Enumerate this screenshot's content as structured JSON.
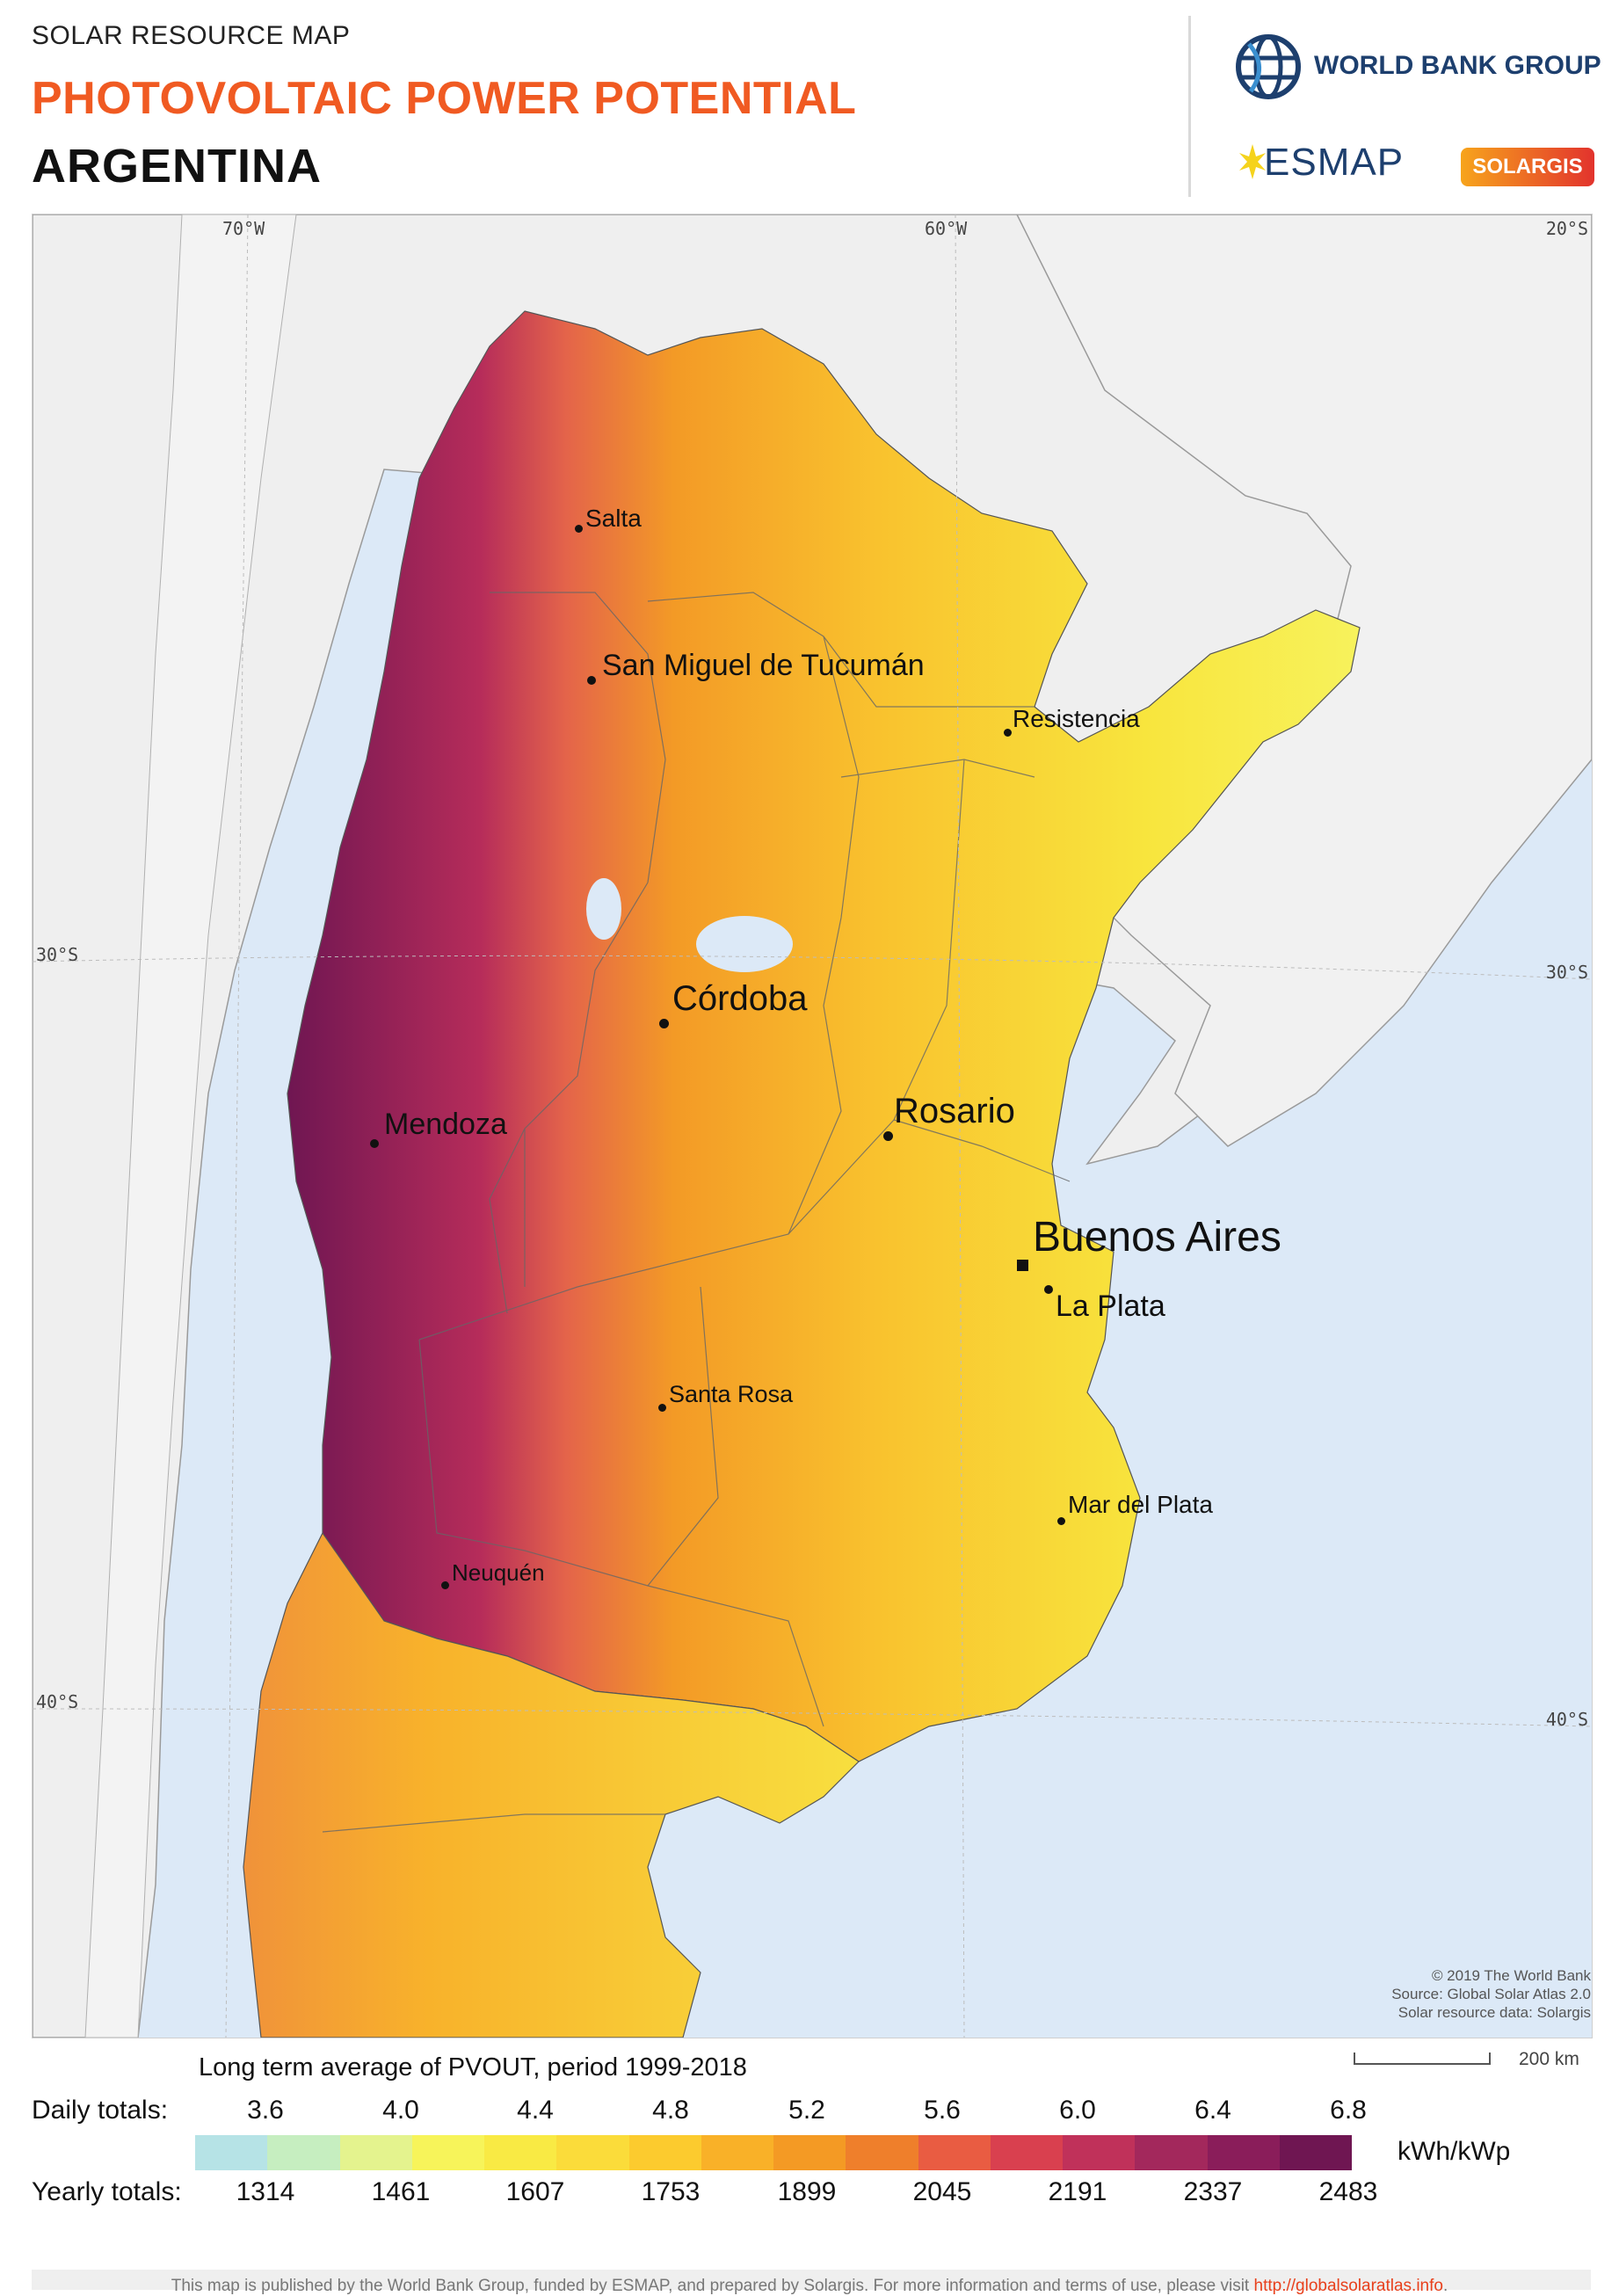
{
  "header": {
    "kicker": "SOLAR RESOURCE MAP",
    "title": "PHOTOVOLTAIC POWER POTENTIAL",
    "country": "ARGENTINA",
    "logos": {
      "world_bank": "WORLD BANK GROUP",
      "esmap": "ESMAP",
      "solargis": "SOLARGIS"
    }
  },
  "map": {
    "graticule": {
      "longitudes": [
        "70°W",
        "60°W"
      ],
      "latitudes_left": [
        "30°S",
        "40°S"
      ],
      "latitudes_right": [
        "20°S",
        "30°S",
        "40°S"
      ]
    },
    "cities": [
      {
        "name": "Salta",
        "size": "small"
      },
      {
        "name": "San Miguel de Tucumán",
        "size": "medium"
      },
      {
        "name": "Resistencia",
        "size": "small"
      },
      {
        "name": "Córdoba",
        "size": "large"
      },
      {
        "name": "Mendoza",
        "size": "medium"
      },
      {
        "name": "Rosario",
        "size": "large"
      },
      {
        "name": "Buenos Aires",
        "size": "capital"
      },
      {
        "name": "La Plata",
        "size": "medium"
      },
      {
        "name": "Santa Rosa",
        "size": "small"
      },
      {
        "name": "Mar del Plata",
        "size": "small"
      },
      {
        "name": "Neuquén",
        "size": "small"
      }
    ],
    "credits": [
      "© 2019 The World Bank",
      "Source: Global Solar Atlas 2.0",
      "Solar resource data: Solargis"
    ],
    "scale_label": "200 km"
  },
  "legend": {
    "title": "Long term average of PVOUT, period 1999-2018",
    "daily_label": "Daily totals:",
    "yearly_label": "Yearly totals:",
    "daily_values": [
      "3.6",
      "4.0",
      "4.4",
      "4.8",
      "5.2",
      "5.6",
      "6.0",
      "6.4",
      "6.8"
    ],
    "yearly_values": [
      "1314",
      "1461",
      "1607",
      "1753",
      "1899",
      "2045",
      "2191",
      "2337",
      "2483"
    ],
    "unit": "kWh/kWp",
    "colors": [
      "#b6e3e6",
      "#c6eec0",
      "#e4f38e",
      "#f7f45a",
      "#f9ea44",
      "#fbdc3a",
      "#fccb2e",
      "#f9b128",
      "#f49a24",
      "#ef7f2b",
      "#e95c42",
      "#d9404f",
      "#c0315a",
      "#a3285c",
      "#8a1d5a",
      "#6f1652"
    ]
  },
  "footer": {
    "text": "This map is published by the World Bank Group, funded by ESMAP, and prepared by Solargis. For more information and terms of use, please visit",
    "link": "http://globalsolaratlas.info",
    "end": "."
  }
}
